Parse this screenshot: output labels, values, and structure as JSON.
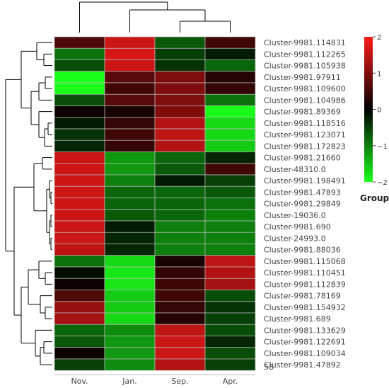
{
  "chart_data": {
    "type": "heatmap",
    "columns": [
      "Nov.",
      "Jan.",
      "Sep.",
      "Apr."
    ],
    "rows": [
      "Cluster-9981.114831",
      "Cluster-9981.112265",
      "Cluster-9981.105938",
      "Cluster-9981.97911",
      "Cluster-9981.109600",
      "Cluster-9981.104986",
      "Cluster-9981.89369",
      "Cluster-9981.118516",
      "Cluster-9981.123071",
      "Cluster-9981.172823",
      "Cluster-9981.21660",
      "Cluster-48310.0",
      "Cluster-9981.198491",
      "Cluster-9981.47893",
      "Cluster-9981.29849",
      "Cluster-19036.0",
      "Cluster-9981.690",
      "Cluster-24993.0",
      "Cluster-9981.88036",
      "Cluster-9981.115068",
      "Cluster-9981.110451",
      "Cluster-9981.112839",
      "Cluster-9981.78169",
      "Cluster-9981.154932",
      "Cluster-9981.689",
      "Cluster-9981.133629",
      "Cluster-9981.122691",
      "Cluster-9981.109034",
      "Cluster-9981.47892"
    ],
    "values": [
      [
        0.6,
        1.6,
        -0.7,
        0.5
      ],
      [
        -0.9,
        1.7,
        -0.5,
        -0.2
      ],
      [
        -0.6,
        1.6,
        -0.4,
        -0.8
      ],
      [
        -2.0,
        0.7,
        1.0,
        0.3
      ],
      [
        -2.0,
        0.5,
        1.0,
        0.4
      ],
      [
        -0.6,
        0.7,
        1.0,
        -0.9
      ],
      [
        0.1,
        0.2,
        1.0,
        -2.0
      ],
      [
        -0.2,
        0.4,
        1.4,
        -1.7
      ],
      [
        -0.4,
        0.5,
        1.5,
        -1.7
      ],
      [
        -0.3,
        0.4,
        1.4,
        -1.6
      ],
      [
        1.6,
        -1.2,
        -0.8,
        -0.3
      ],
      [
        1.6,
        -1.2,
        -0.7,
        0.5
      ],
      [
        1.6,
        -1.0,
        -0.2,
        -0.5
      ],
      [
        1.6,
        -0.8,
        -0.8,
        -0.7
      ],
      [
        1.6,
        -0.8,
        -0.8,
        -0.9
      ],
      [
        1.6,
        -0.7,
        -0.8,
        -1.0
      ],
      [
        1.6,
        -0.2,
        -1.0,
        -1.0
      ],
      [
        1.6,
        -0.3,
        -1.0,
        -1.0
      ],
      [
        1.5,
        -0.3,
        -1.0,
        -1.0
      ],
      [
        -0.9,
        -1.7,
        0.2,
        1.5
      ],
      [
        -0.1,
        -1.8,
        0.4,
        1.4
      ],
      [
        0.1,
        -1.8,
        0.5,
        1.3
      ],
      [
        0.6,
        -1.6,
        0.5,
        -0.6
      ],
      [
        1.2,
        -1.6,
        0.4,
        -0.4
      ],
      [
        1.3,
        -1.7,
        0.3,
        -0.5
      ],
      [
        -0.8,
        -1.1,
        1.5,
        -0.6
      ],
      [
        -0.7,
        -1.2,
        1.6,
        -0.3
      ],
      [
        0.1,
        -1.2,
        1.6,
        -0.6
      ],
      [
        -0.5,
        -1.1,
        1.4,
        -0.5
      ]
    ],
    "extra_row_label": "58",
    "legend": {
      "title": "Group",
      "ticks": [
        "2",
        "1",
        "0",
        "−1",
        "−2"
      ],
      "tick_values": [
        2,
        1,
        0,
        -1,
        -2
      ],
      "colors": {
        "high": "#ff1a1a",
        "mid": "#000000",
        "low": "#1aff1a"
      },
      "placement": "right"
    },
    "column_dendrogram": true,
    "row_dendrogram": true
  }
}
